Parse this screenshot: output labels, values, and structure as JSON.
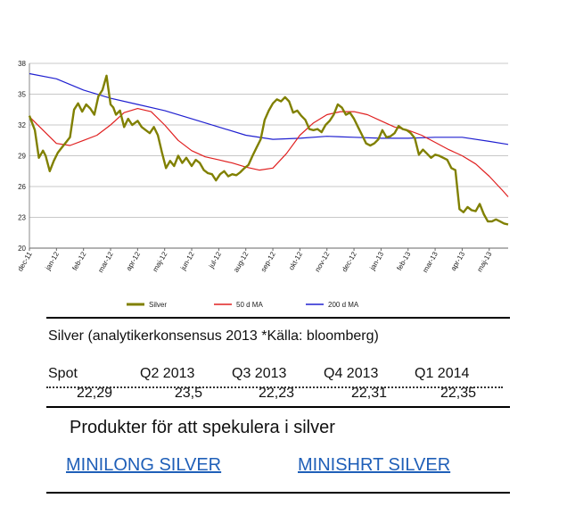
{
  "chart_data": {
    "type": "line",
    "y_ticks": [
      "38",
      "35",
      "32",
      "29",
      "26",
      "23",
      "20"
    ],
    "ylim": [
      20,
      38
    ],
    "x_ticks": [
      "dec-11",
      "jan-12",
      "feb-12",
      "mar-12",
      "apr-12",
      "maj-12",
      "jun-12",
      "jul-12",
      "aug-12",
      "sep-12",
      "okt-12",
      "nov-12",
      "dec-12",
      "jan-13",
      "feb-13",
      "mar-13",
      "apr-13",
      "maj-13"
    ],
    "xlim": [
      0,
      17.7
    ],
    "grid": true,
    "legend_position": "bottom",
    "series": [
      {
        "name": "Silver",
        "color": "#808000",
        "x": [
          0,
          0.2,
          0.35,
          0.5,
          0.6,
          0.75,
          0.9,
          1.05,
          1.2,
          1.35,
          1.5,
          1.65,
          1.8,
          1.95,
          2.1,
          2.25,
          2.4,
          2.55,
          2.7,
          2.85,
          3.0,
          3.1,
          3.2,
          3.35,
          3.5,
          3.65,
          3.8,
          4.0,
          4.15,
          4.3,
          4.45,
          4.6,
          4.75,
          4.9,
          5.05,
          5.2,
          5.35,
          5.5,
          5.65,
          5.8,
          6.0,
          6.15,
          6.3,
          6.45,
          6.6,
          6.75,
          6.9,
          7.05,
          7.2,
          7.35,
          7.5,
          7.65,
          7.8,
          7.95,
          8.1,
          8.25,
          8.4,
          8.55,
          8.7,
          8.85,
          9.0,
          9.15,
          9.3,
          9.45,
          9.6,
          9.75,
          9.9,
          10.05,
          10.2,
          10.35,
          10.5,
          10.65,
          10.8,
          10.95,
          11.1,
          11.25,
          11.4,
          11.55,
          11.7,
          11.85,
          12.0,
          12.15,
          12.3,
          12.45,
          12.6,
          12.75,
          12.9,
          13.05,
          13.2,
          13.35,
          13.5,
          13.65,
          13.8,
          13.95,
          14.1,
          14.25,
          14.4,
          14.55,
          14.7,
          14.85,
          15.0,
          15.15,
          15.3,
          15.45,
          15.6,
          15.75,
          15.9,
          16.05,
          16.2,
          16.35,
          16.5,
          16.65,
          16.8,
          16.95,
          17.1,
          17.25,
          17.4,
          17.55,
          17.7
        ],
        "y": [
          32.9,
          31.5,
          28.8,
          29.5,
          29.0,
          27.5,
          28.5,
          29.3,
          29.8,
          30.3,
          30.8,
          33.5,
          34.1,
          33.3,
          34.0,
          33.6,
          33.0,
          34.8,
          35.4,
          36.8,
          34.0,
          33.7,
          33.0,
          33.4,
          31.8,
          32.6,
          32.0,
          32.4,
          31.8,
          31.5,
          31.2,
          31.8,
          31.0,
          29.3,
          27.8,
          28.5,
          28.0,
          29.0,
          28.3,
          28.8,
          28.0,
          28.6,
          28.3,
          27.6,
          27.3,
          27.2,
          26.6,
          27.2,
          27.5,
          27.0,
          27.2,
          27.1,
          27.4,
          27.8,
          28.1,
          29.0,
          29.8,
          30.6,
          32.5,
          33.4,
          34.1,
          34.5,
          34.3,
          34.7,
          34.3,
          33.2,
          33.4,
          32.9,
          32.5,
          31.6,
          31.5,
          31.6,
          31.3,
          32.0,
          32.4,
          33.0,
          34.0,
          33.7,
          33.0,
          33.2,
          32.6,
          31.8,
          31.0,
          30.2,
          30.0,
          30.2,
          30.6,
          31.5,
          30.8,
          30.9,
          31.2,
          31.9,
          31.6,
          31.5,
          31.2,
          30.7,
          29.1,
          29.6,
          29.2,
          28.8,
          29.1,
          29.0,
          28.8,
          28.6,
          27.8,
          27.6,
          23.8,
          23.5,
          24.0,
          23.7,
          23.6,
          24.3,
          23.3,
          22.6,
          22.6,
          22.8,
          22.6,
          22.4,
          22.3
        ]
      },
      {
        "name": "50 d MA",
        "color": "#e02020",
        "x": [
          0,
          0.5,
          1.0,
          1.5,
          2.0,
          2.5,
          3.0,
          3.5,
          4.0,
          4.5,
          5.0,
          5.5,
          6.0,
          6.5,
          7.0,
          7.5,
          8.0,
          8.5,
          9.0,
          9.5,
          10.0,
          10.5,
          11.0,
          11.5,
          12.0,
          12.5,
          13.0,
          13.5,
          14.0,
          14.5,
          15.0,
          15.5,
          16.0,
          16.5,
          17.0,
          17.5,
          17.7
        ],
        "y": [
          32.8,
          31.5,
          30.2,
          30.0,
          30.5,
          31.0,
          32.0,
          33.2,
          33.6,
          33.3,
          32.0,
          30.5,
          29.5,
          28.9,
          28.6,
          28.3,
          27.9,
          27.6,
          27.8,
          29.2,
          31.0,
          32.2,
          33.0,
          33.3,
          33.3,
          33.0,
          32.4,
          31.8,
          31.5,
          31.0,
          30.3,
          29.6,
          29.0,
          28.2,
          27.0,
          25.6,
          25.0
        ]
      },
      {
        "name": "200 d MA",
        "color": "#2020d0",
        "x": [
          0,
          1.0,
          2.0,
          3.0,
          4.0,
          5.0,
          6.0,
          7.0,
          8.0,
          9.0,
          10.0,
          11.0,
          12.0,
          13.0,
          14.0,
          15.0,
          16.0,
          17.0,
          17.7
        ],
        "y": [
          37.0,
          36.5,
          35.4,
          34.6,
          34.0,
          33.4,
          32.6,
          31.8,
          31.0,
          30.6,
          30.7,
          30.9,
          30.8,
          30.7,
          30.7,
          30.8,
          30.8,
          30.4,
          30.1
        ]
      }
    ]
  },
  "consensus": {
    "heading": "Silver (analytikerkonsensus 2013 *Källa: bloomberg)",
    "headers": [
      "Spot",
      "Q2 2013",
      "Q3 2013",
      "Q4 2013",
      "Q1 2014"
    ],
    "values": [
      "22,29",
      "23,5",
      "22,23",
      "22,31",
      "22,35"
    ]
  },
  "products": {
    "heading": "Produkter för att spekulera i silver",
    "link_long": "MINILONG SILVER",
    "link_short": "MINISHRT SILVER"
  }
}
